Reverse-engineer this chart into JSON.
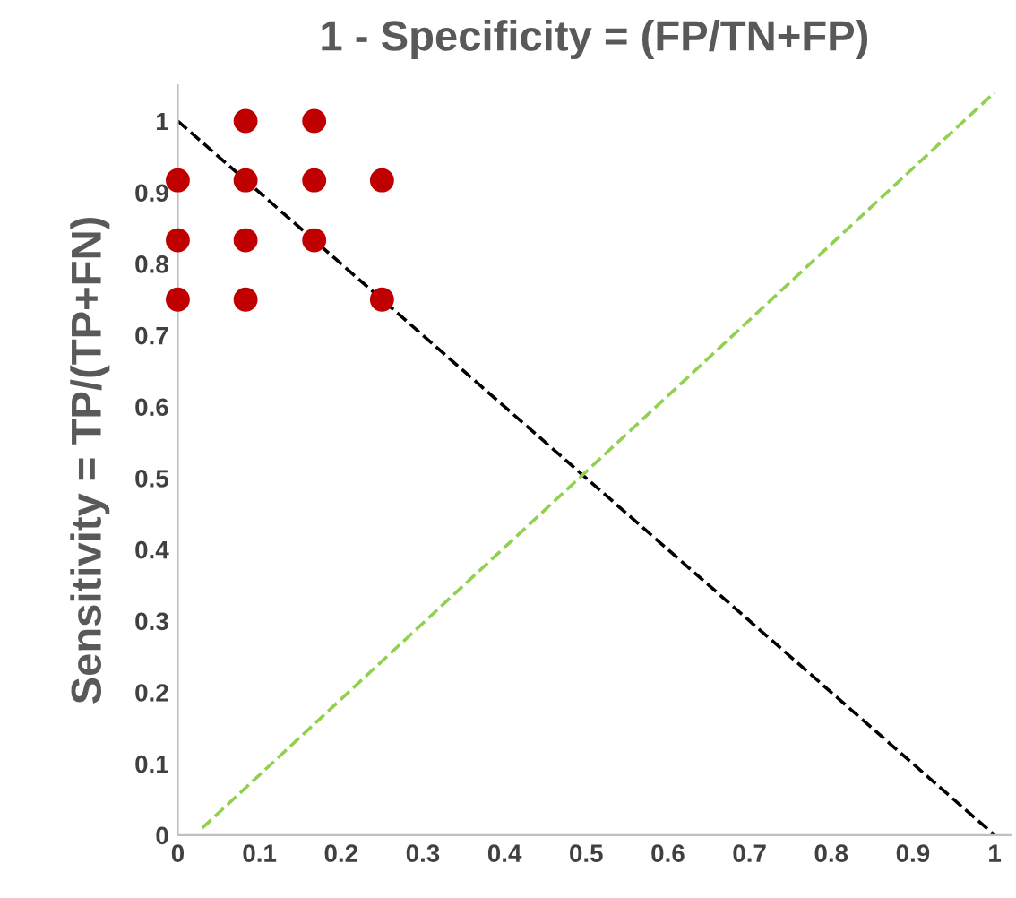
{
  "chart_data": {
    "type": "scatter",
    "title": "1 - Specificity = (FP/TN+FP)",
    "ylabel": "Sensitivity = TP/(TP+FN)",
    "xlim": [
      0,
      1.02
    ],
    "ylim": [
      0,
      1.05
    ],
    "xticks": [
      0,
      0.1,
      0.2,
      0.3,
      0.4,
      0.5,
      0.6,
      0.7,
      0.8,
      0.9,
      1
    ],
    "yticks": [
      0,
      0.1,
      0.2,
      0.3,
      0.4,
      0.5,
      0.6,
      0.7,
      0.8,
      0.9,
      1
    ],
    "grid": false,
    "series": [
      {
        "marker": "circle",
        "color": "#c00000",
        "x": [
          0,
          0,
          0,
          0.083,
          0.083,
          0.083,
          0.083,
          0.167,
          0.167,
          0.167,
          0.25,
          0.25
        ],
        "values": [
          0.917,
          0.833,
          0.75,
          1,
          0.917,
          0.833,
          0.75,
          1,
          0.917,
          0.833,
          0.917,
          0.75
        ]
      },
      {
        "type": "line",
        "color": "#000000",
        "line_style": "dashed",
        "marker": "none",
        "x": [
          0,
          1
        ],
        "values": [
          1,
          0
        ]
      },
      {
        "type": "line",
        "color": "#92d050",
        "line_style": "dashed",
        "marker": "none",
        "x": [
          0.03,
          1
        ],
        "values": [
          0.01,
          1.04
        ]
      }
    ]
  }
}
